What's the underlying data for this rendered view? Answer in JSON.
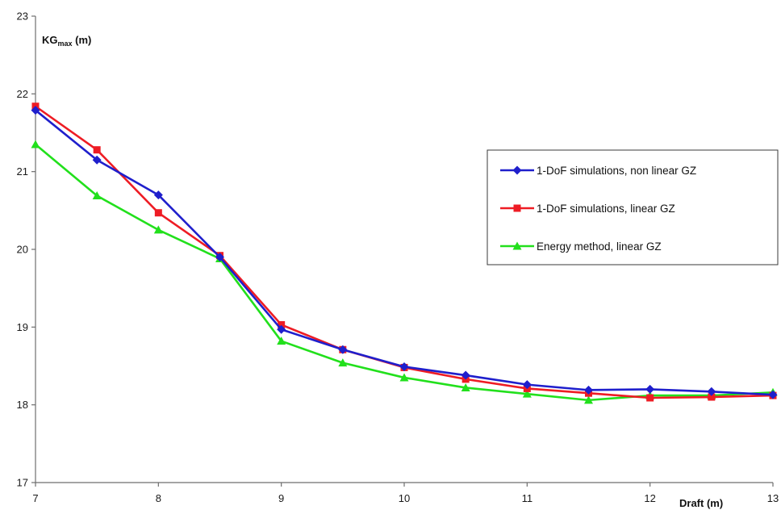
{
  "chart_data": {
    "type": "line",
    "ylabel_main": "KG",
    "ylabel_sub": "max",
    "ylabel_unit": " (m)",
    "xlabel": "Draft (m)",
    "xlim": [
      7,
      13
    ],
    "ylim": [
      17,
      23
    ],
    "xticks": [
      "7",
      "8",
      "9",
      "10",
      "11",
      "12",
      "13"
    ],
    "yticks": [
      "17",
      "18",
      "19",
      "20",
      "21",
      "22",
      "23"
    ],
    "grid": false,
    "legend_position": "right",
    "x": [
      7,
      7.5,
      8,
      8.5,
      9,
      9.5,
      10,
      10.5,
      11,
      11.5,
      12,
      12.5,
      13
    ],
    "series": [
      {
        "name": "1-DoF simulations, non linear GZ",
        "color": "#1f1fcc",
        "marker": "diamond",
        "values": [
          21.79,
          21.15,
          20.7,
          19.9,
          18.97,
          18.71,
          18.49,
          18.38,
          18.26,
          18.19,
          18.2,
          18.17,
          18.13
        ]
      },
      {
        "name": "1-DoF simulations, linear GZ",
        "color": "#ee1c24",
        "marker": "square",
        "values": [
          21.84,
          21.28,
          20.47,
          19.92,
          19.03,
          18.71,
          18.48,
          18.33,
          18.21,
          18.15,
          18.09,
          18.1,
          18.12
        ]
      },
      {
        "name": "Energy method, linear GZ",
        "color": "#22e01c",
        "marker": "triangle",
        "values": [
          21.35,
          20.69,
          20.25,
          19.88,
          18.82,
          18.54,
          18.35,
          18.22,
          18.14,
          18.06,
          18.12,
          18.12,
          18.16
        ]
      }
    ]
  }
}
